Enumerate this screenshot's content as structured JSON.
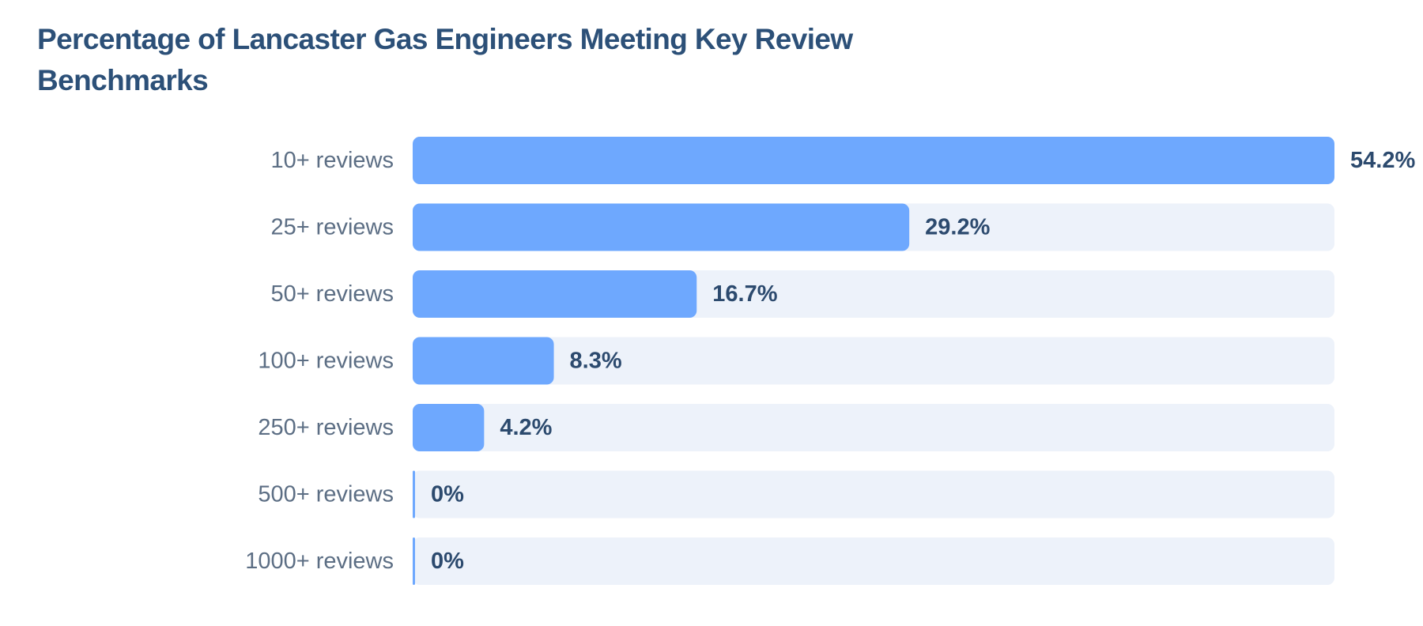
{
  "chart_data": {
    "type": "bar",
    "orientation": "horizontal",
    "title": "Percentage of Lancaster Gas Engineers Meeting Key Review Benchmarks",
    "categories": [
      "10+ reviews",
      "25+ reviews",
      "50+ reviews",
      "100+ reviews",
      "250+ reviews",
      "500+ reviews",
      "1000+ reviews"
    ],
    "values": [
      54.2,
      29.2,
      16.7,
      8.3,
      4.2,
      0,
      0
    ],
    "value_labels": [
      "54.2%",
      "29.2%",
      "16.7%",
      "8.3%",
      "4.2%",
      "0%",
      "0%"
    ],
    "xlim": [
      0,
      54.2
    ],
    "xlabel": "",
    "ylabel": "",
    "grid": false,
    "colors": {
      "bar": "#6ea8fe",
      "track": "#edf2fa",
      "title": "#2c5078",
      "category_text": "#5c6e84",
      "value_text": "#2c4a6e"
    }
  }
}
